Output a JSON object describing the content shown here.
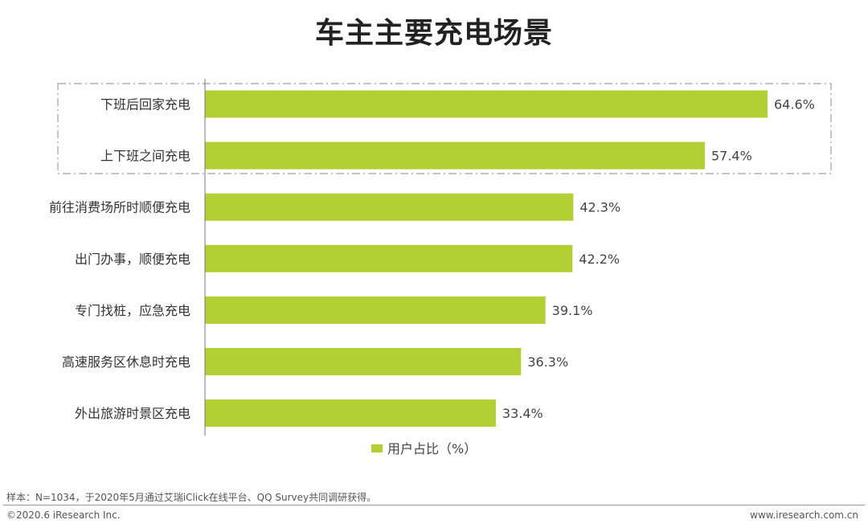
{
  "title": "车主主要充电场景",
  "legend_label": "用户占比（%）",
  "note": "样本：N=1034，于2020年5月通过艾瑞iClick在线平台、QQ Survey共同调研获得。",
  "copyright": "©2020.6 iResearch Inc.",
  "website": "www.iresearch.com.cn",
  "colors": {
    "bar": "#b2cf34",
    "axis": "#777777",
    "highlight_border": "#a0a0a0"
  },
  "highlighted_categories": [
    "下班后回家充电",
    "上下班之间充电"
  ],
  "chart_data": {
    "type": "bar",
    "orientation": "horizontal",
    "categories": [
      "下班后回家充电",
      "上下班之间充电",
      "前往消费场所时顺便充电",
      "出门办事，顺便充电",
      "专门找桩，应急充电",
      "高速服务区休息时充电",
      "外出旅游时景区充电"
    ],
    "series": [
      {
        "name": "用户占比（%）",
        "values": [
          64.6,
          57.4,
          42.3,
          42.2,
          39.1,
          36.3,
          33.4
        ]
      }
    ],
    "value_labels": [
      "64.6%",
      "57.4%",
      "42.3%",
      "42.2%",
      "39.1%",
      "36.3%",
      "33.4%"
    ],
    "xlim": [
      0,
      100
    ],
    "grid": false,
    "legend_position": "bottom"
  }
}
